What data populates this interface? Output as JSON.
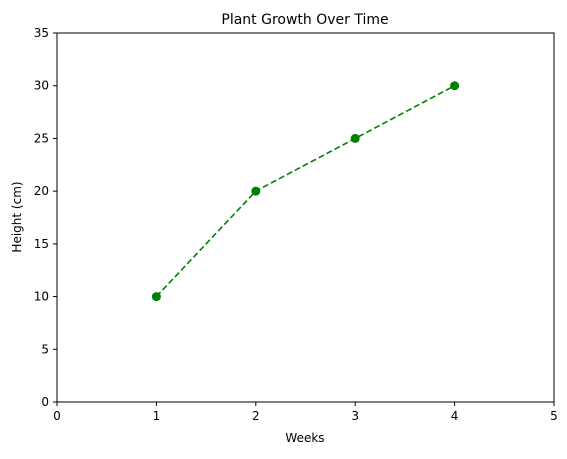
{
  "chart_data": {
    "type": "line",
    "title": "Plant Growth Over Time",
    "xlabel": "Weeks",
    "ylabel": "Height (cm)",
    "xlim": [
      0,
      5
    ],
    "ylim": [
      0,
      35
    ],
    "xticks": [
      0,
      1,
      2,
      3,
      4,
      5
    ],
    "yticks": [
      0,
      5,
      10,
      15,
      20,
      25,
      30,
      35
    ],
    "grid": false,
    "series": [
      {
        "x": [
          1,
          2,
          3,
          4
        ],
        "y": [
          10,
          20,
          25,
          30
        ],
        "color": "#008000",
        "line_style": "dashed",
        "marker": "circle"
      }
    ]
  }
}
